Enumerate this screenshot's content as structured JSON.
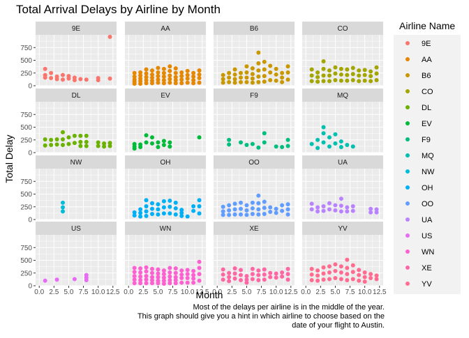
{
  "chart_data": {
    "type": "scatter",
    "title": "Total Arrival Delays by Airline by Month",
    "xlabel": "Month",
    "ylabel": "Total Delay",
    "xlim": [
      0,
      12.5
    ],
    "ylim": [
      0,
      1000
    ],
    "x_ticks": [
      0.0,
      2.5,
      5.0,
      7.5,
      10.0,
      12.5
    ],
    "x_tick_labels": [
      "0.0",
      "2.5",
      "5.0",
      "7.5",
      "10.0",
      "12.5"
    ],
    "y_ticks": [
      0,
      250,
      500,
      750
    ],
    "y_tick_labels": [
      "0",
      "250",
      "500",
      "750"
    ],
    "grid": true,
    "legend_position": "right",
    "legend_title": "Airline Name",
    "caption": [
      "Most of the delays per airline is in the middle of the year.",
      "This graph should give you a hint in which airline to choose based on the",
      "date of your flight to Austin."
    ],
    "series": [
      {
        "name": "9E",
        "color": "#F8766D",
        "x": [
          1,
          1,
          1,
          2,
          2,
          3,
          3,
          4,
          4,
          5,
          5,
          6,
          6,
          7,
          8,
          10,
          10,
          12,
          12
        ],
        "y": [
          330,
          210,
          160,
          250,
          150,
          130,
          180,
          210,
          120,
          190,
          140,
          160,
          110,
          130,
          120,
          150,
          110,
          140,
          960
        ]
      },
      {
        "name": "AA",
        "color": "#E58700",
        "x": [
          1,
          1,
          1,
          1,
          1,
          2,
          2,
          2,
          2,
          2,
          3,
          3,
          3,
          3,
          3,
          4,
          4,
          4,
          4,
          4,
          5,
          5,
          5,
          5,
          5,
          6,
          6,
          6,
          6,
          6,
          7,
          7,
          7,
          7,
          7,
          8,
          8,
          8,
          8,
          8,
          9,
          9,
          9,
          9,
          10,
          10,
          10,
          10,
          11,
          11,
          11,
          11,
          12,
          12,
          12,
          12
        ],
        "y": [
          250,
          180,
          120,
          80,
          40,
          260,
          200,
          140,
          90,
          40,
          320,
          240,
          170,
          110,
          50,
          300,
          220,
          160,
          100,
          50,
          350,
          260,
          190,
          120,
          60,
          330,
          250,
          180,
          110,
          50,
          380,
          290,
          200,
          130,
          60,
          340,
          250,
          170,
          110,
          50,
          260,
          190,
          120,
          50,
          290,
          210,
          140,
          60,
          250,
          180,
          110,
          50,
          300,
          220,
          150,
          60
        ]
      },
      {
        "name": "B6",
        "color": "#C99800",
        "x": [
          1,
          1,
          1,
          2,
          2,
          2,
          3,
          3,
          3,
          3,
          4,
          4,
          4,
          5,
          5,
          5,
          5,
          6,
          6,
          6,
          6,
          7,
          7,
          7,
          7,
          7,
          8,
          8,
          8,
          8,
          9,
          9,
          9,
          10,
          10,
          10,
          11,
          11,
          11,
          12,
          12,
          12
        ],
        "y": [
          210,
          130,
          60,
          250,
          160,
          70,
          320,
          220,
          130,
          60,
          250,
          160,
          70,
          380,
          260,
          160,
          70,
          340,
          230,
          140,
          60,
          650,
          440,
          300,
          180,
          70,
          470,
          320,
          190,
          80,
          390,
          260,
          110,
          330,
          220,
          100,
          250,
          160,
          70,
          380,
          260,
          120
        ]
      },
      {
        "name": "CO",
        "color": "#A3A500",
        "x": [
          1,
          1,
          1,
          2,
          2,
          2,
          3,
          3,
          3,
          3,
          4,
          4,
          4,
          5,
          5,
          5,
          6,
          6,
          6,
          7,
          7,
          7,
          8,
          8,
          8,
          9,
          9,
          9,
          10,
          10,
          10,
          11,
          11,
          11,
          12,
          12,
          12
        ],
        "y": [
          320,
          200,
          90,
          260,
          170,
          80,
          480,
          330,
          200,
          90,
          300,
          200,
          90,
          360,
          240,
          110,
          330,
          220,
          100,
          320,
          210,
          100,
          350,
          230,
          110,
          300,
          200,
          90,
          310,
          210,
          100,
          280,
          190,
          90,
          360,
          240,
          110
        ]
      },
      {
        "name": "DL",
        "color": "#6BB100",
        "x": [
          1,
          1,
          2,
          2,
          3,
          3,
          4,
          4,
          4,
          5,
          5,
          6,
          6,
          7,
          7,
          7,
          8,
          8,
          8,
          10,
          10,
          11,
          11,
          12,
          12
        ],
        "y": [
          260,
          140,
          250,
          150,
          260,
          160,
          400,
          260,
          150,
          300,
          170,
          330,
          190,
          330,
          210,
          130,
          330,
          210,
          130,
          200,
          130,
          180,
          120,
          190,
          130
        ]
      },
      {
        "name": "EV",
        "color": "#00BA38",
        "x": [
          1,
          1,
          1,
          2,
          2,
          3,
          3,
          4,
          4,
          5,
          5,
          6,
          6,
          7,
          7,
          12
        ],
        "y": [
          170,
          120,
          80,
          160,
          110,
          340,
          200,
          300,
          180,
          200,
          110,
          230,
          150,
          200,
          120,
          300
        ]
      },
      {
        "name": "F9",
        "color": "#00BF7D",
        "x": [
          2,
          2,
          4,
          5,
          6,
          7,
          8,
          8,
          10,
          11,
          12,
          12
        ],
        "y": [
          250,
          160,
          200,
          150,
          170,
          100,
          380,
          200,
          120,
          110,
          250,
          130
        ]
      },
      {
        "name": "MQ",
        "color": "#00C0AF",
        "x": [
          1,
          2,
          2,
          3,
          3,
          3,
          4,
          4,
          5,
          5,
          6,
          6,
          7,
          8
        ],
        "y": [
          170,
          250,
          90,
          500,
          380,
          200,
          300,
          120,
          360,
          180,
          220,
          110,
          150,
          120
        ]
      },
      {
        "name": "NW",
        "color": "#00BCD8",
        "x": [
          4,
          4,
          4
        ],
        "y": [
          330,
          240,
          160
        ]
      },
      {
        "name": "OH",
        "color": "#00B0F6",
        "x": [
          1,
          1,
          2,
          2,
          2,
          3,
          3,
          3,
          3,
          4,
          4,
          4,
          5,
          5,
          5,
          6,
          6,
          6,
          7,
          7,
          7,
          8,
          8,
          8,
          9,
          9,
          9,
          10,
          11,
          11,
          12,
          12,
          12
        ],
        "y": [
          140,
          80,
          200,
          130,
          60,
          380,
          260,
          160,
          70,
          320,
          210,
          110,
          300,
          200,
          100,
          360,
          240,
          120,
          370,
          250,
          120,
          330,
          220,
          100,
          190,
          130,
          70,
          60,
          260,
          170,
          380,
          260,
          120
        ]
      },
      {
        "name": "OO",
        "color": "#619CFF",
        "x": [
          1,
          1,
          1,
          2,
          2,
          2,
          3,
          3,
          3,
          4,
          4,
          4,
          5,
          5,
          5,
          6,
          6,
          6,
          7,
          7,
          7,
          7,
          8,
          8,
          8,
          9,
          9,
          10,
          10,
          11,
          11,
          12,
          12,
          12
        ],
        "y": [
          250,
          160,
          90,
          280,
          180,
          90,
          310,
          200,
          100,
          330,
          210,
          100,
          280,
          180,
          90,
          330,
          220,
          110,
          470,
          320,
          200,
          100,
          350,
          230,
          110,
          240,
          150,
          210,
          130,
          280,
          170,
          300,
          200,
          100
        ]
      },
      {
        "name": "UA",
        "color": "#B983FF",
        "x": [
          1,
          1,
          2,
          2,
          3,
          3,
          4,
          4,
          5,
          5,
          6,
          6,
          6,
          7,
          7,
          8,
          8,
          11,
          11,
          12,
          12
        ],
        "y": [
          310,
          200,
          240,
          160,
          260,
          170,
          320,
          200,
          280,
          180,
          410,
          270,
          160,
          240,
          160,
          260,
          170,
          210,
          140,
          200,
          140
        ]
      },
      {
        "name": "US",
        "color": "#E76BF3",
        "x": [
          1,
          3,
          6,
          8,
          8,
          8
        ],
        "y": [
          100,
          120,
          130,
          210,
          160,
          110
        ]
      },
      {
        "name": "WN",
        "color": "#FD61D1",
        "x": [
          1,
          1,
          1,
          1,
          1,
          2,
          2,
          2,
          2,
          2,
          3,
          3,
          3,
          3,
          3,
          4,
          4,
          4,
          4,
          4,
          5,
          5,
          5,
          5,
          5,
          6,
          6,
          6,
          6,
          6,
          7,
          7,
          7,
          7,
          7,
          8,
          8,
          8,
          8,
          8,
          9,
          9,
          9,
          9,
          10,
          10,
          10,
          10,
          11,
          11,
          11,
          11,
          12,
          12,
          12,
          12
        ],
        "y": [
          350,
          270,
          190,
          120,
          50,
          340,
          260,
          180,
          110,
          50,
          360,
          280,
          190,
          120,
          50,
          330,
          250,
          170,
          110,
          50,
          320,
          240,
          170,
          100,
          50,
          300,
          230,
          160,
          100,
          40,
          350,
          260,
          180,
          110,
          50,
          340,
          250,
          170,
          110,
          50,
          300,
          220,
          150,
          60,
          310,
          230,
          150,
          60,
          290,
          210,
          140,
          60,
          470,
          350,
          230,
          100
        ]
      },
      {
        "name": "XE",
        "color": "#FF67A4",
        "x": [
          1,
          1,
          1,
          2,
          2,
          2,
          3,
          3,
          3,
          4,
          4,
          4,
          5,
          5,
          5,
          6,
          6,
          6,
          7,
          7,
          7,
          8,
          8,
          8,
          9,
          9,
          10,
          10,
          11,
          11,
          12,
          12,
          12
        ],
        "y": [
          320,
          220,
          120,
          250,
          170,
          90,
          340,
          240,
          140,
          310,
          210,
          110,
          190,
          120,
          60,
          330,
          230,
          130,
          300,
          210,
          110,
          320,
          220,
          120,
          250,
          170,
          240,
          160,
          260,
          180,
          330,
          230,
          120
        ]
      },
      {
        "name": "YV",
        "color": "#FF6C90",
        "x": [
          1,
          1,
          1,
          2,
          2,
          2,
          3,
          3,
          3,
          4,
          4,
          4,
          5,
          5,
          5,
          6,
          6,
          6,
          7,
          7,
          7,
          7,
          8,
          8,
          8,
          9,
          9,
          9,
          10,
          10,
          10,
          11,
          11,
          12,
          12
        ],
        "y": [
          330,
          220,
          110,
          300,
          200,
          100,
          360,
          240,
          120,
          380,
          260,
          130,
          420,
          290,
          150,
          380,
          260,
          130,
          510,
          350,
          230,
          110,
          400,
          270,
          130,
          310,
          210,
          100,
          260,
          170,
          80,
          230,
          150,
          200,
          130
        ]
      }
    ]
  }
}
